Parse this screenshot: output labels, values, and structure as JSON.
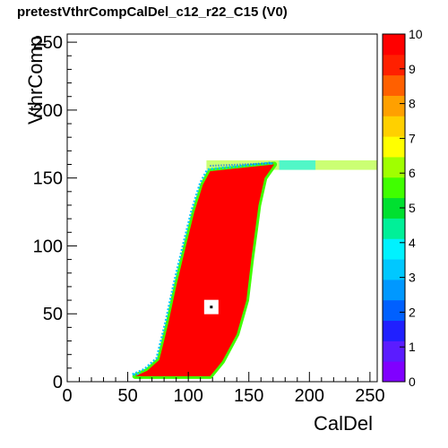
{
  "chart_data": {
    "type": "heatmap",
    "title": "pretestVthrCompCalDel_c12_r22_C15 (V0)",
    "xlabel": "CalDel",
    "ylabel": "VthrComp",
    "xlim": [
      0,
      256
    ],
    "ylim": [
      0,
      256
    ],
    "zlim": [
      0,
      10
    ],
    "x_ticks": [
      0,
      50,
      100,
      150,
      200,
      250
    ],
    "y_ticks": [
      0,
      50,
      100,
      150,
      200,
      250
    ],
    "z_ticks": [
      0,
      1,
      2,
      3,
      4,
      5,
      6,
      7,
      8,
      9,
      10
    ],
    "saturated_value": 10,
    "saturated_region": {
      "left_edge": [
        [
          56,
          4
        ],
        [
          66,
          8
        ],
        [
          76,
          16
        ],
        [
          80,
          30
        ],
        [
          84,
          45
        ],
        [
          90,
          70
        ],
        [
          98,
          100
        ],
        [
          105,
          125
        ],
        [
          112,
          145
        ],
        [
          118,
          155
        ]
      ],
      "right_edge": [
        [
          171,
          160
        ],
        [
          163,
          150
        ],
        [
          158,
          130
        ],
        [
          155,
          110
        ],
        [
          152,
          90
        ],
        [
          148,
          60
        ],
        [
          140,
          35
        ],
        [
          128,
          15
        ],
        [
          118,
          4
        ]
      ]
    },
    "plateau": {
      "x_range": [
        115,
        256
      ],
      "y_range": [
        156,
        163
      ],
      "value": 6
    },
    "masked_pixel": {
      "x": 119,
      "y": 55
    }
  },
  "palette_colors": [
    "#8000ff",
    "#5b1cff",
    "#2020ff",
    "#0060ff",
    "#0098ff",
    "#00c8ff",
    "#00f2ff",
    "#00f098",
    "#00e030",
    "#40ff00",
    "#a0ff00",
    "#ffff00",
    "#ffd000",
    "#ffa000",
    "#ff6000",
    "#ff2000",
    "#ff0000"
  ]
}
